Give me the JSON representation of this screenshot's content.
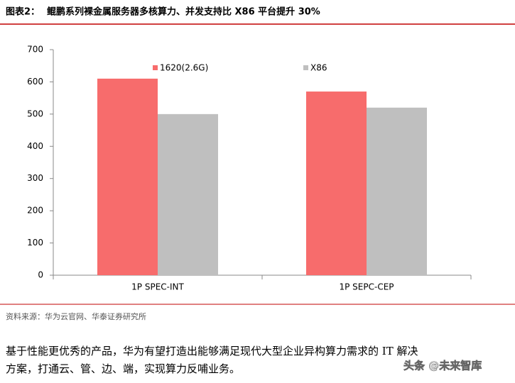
{
  "header": {
    "label": "图表2：",
    "title": "鲲鹏系列裸金属服务器多核算力、并发支持比 X86 平台提升 30%"
  },
  "chart_data": {
    "type": "bar",
    "categories": [
      "1P SPEC-INT",
      "1P SEPC-CEP"
    ],
    "series": [
      {
        "name": "1620(2.6G)",
        "color": "#f76c6c",
        "values": [
          610,
          570
        ]
      },
      {
        "name": "X86",
        "color": "#bfbfbf",
        "values": [
          500,
          520
        ]
      }
    ],
    "ylim": [
      0,
      700
    ],
    "yticks": [
      0,
      100,
      200,
      300,
      400,
      500,
      600,
      700
    ],
    "grid": false
  },
  "source": "资料来源：华为云官网、华泰证券研究所",
  "paragraph": [
    "基于性能更优秀的产品，华为有望打造出能够满足现代大型企业异构算力需求的 IT 解决",
    "方案，打通云、管、边、端，实现算力反哺业务。"
  ],
  "watermark": "头条 @未来智库"
}
